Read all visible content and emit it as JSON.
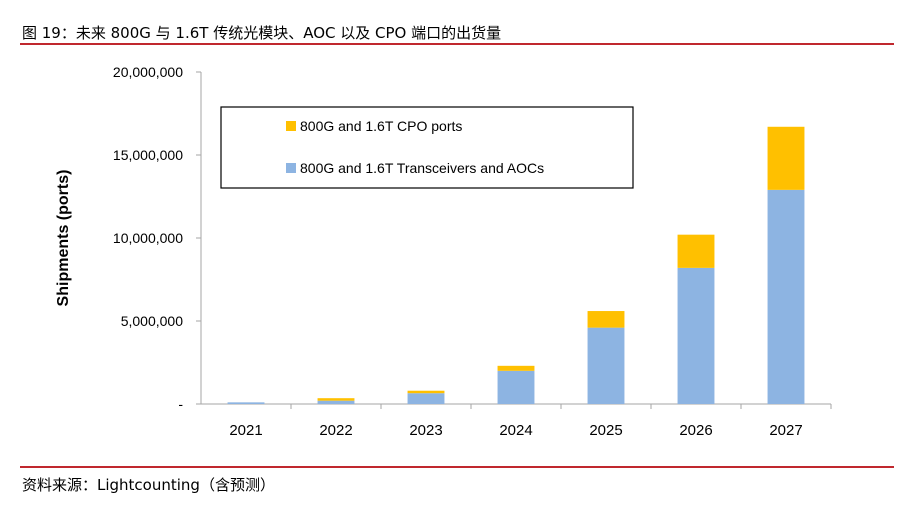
{
  "figure": {
    "title": "图 19：未来 800G 与 1.6T 传统光模块、AOC 以及 CPO 端口的出货量",
    "source": "资料来源：Lightcounting（含预测）"
  },
  "colors": {
    "rule": "#c0282e",
    "transceivers": "#8db4e2",
    "cpo": "#ffc000",
    "axis": "#a6a6a6"
  },
  "chart_data": {
    "type": "bar",
    "stacked": true,
    "categories": [
      "2021",
      "2022",
      "2023",
      "2024",
      "2025",
      "2026",
      "2027"
    ],
    "series": [
      {
        "name": "800G and 1.6T Transceivers and AOCs",
        "values": [
          100000,
          200000,
          650000,
          2000000,
          4600000,
          8200000,
          12900000
        ]
      },
      {
        "name": "800G and 1.6T CPO ports",
        "values": [
          0,
          150000,
          150000,
          300000,
          1000000,
          2000000,
          3800000
        ]
      }
    ],
    "ylabel": "Shipments (ports)",
    "xlabel": "",
    "ylim": [
      0,
      20000000
    ],
    "y_ticks": [
      "-",
      "5,000,000",
      "10,000,000",
      "15,000,000",
      "20,000,000"
    ],
    "legend_position": "top-left",
    "legend_order": [
      "800G and 1.6T CPO ports",
      "800G and 1.6T Transceivers and AOCs"
    ],
    "grid": false
  }
}
